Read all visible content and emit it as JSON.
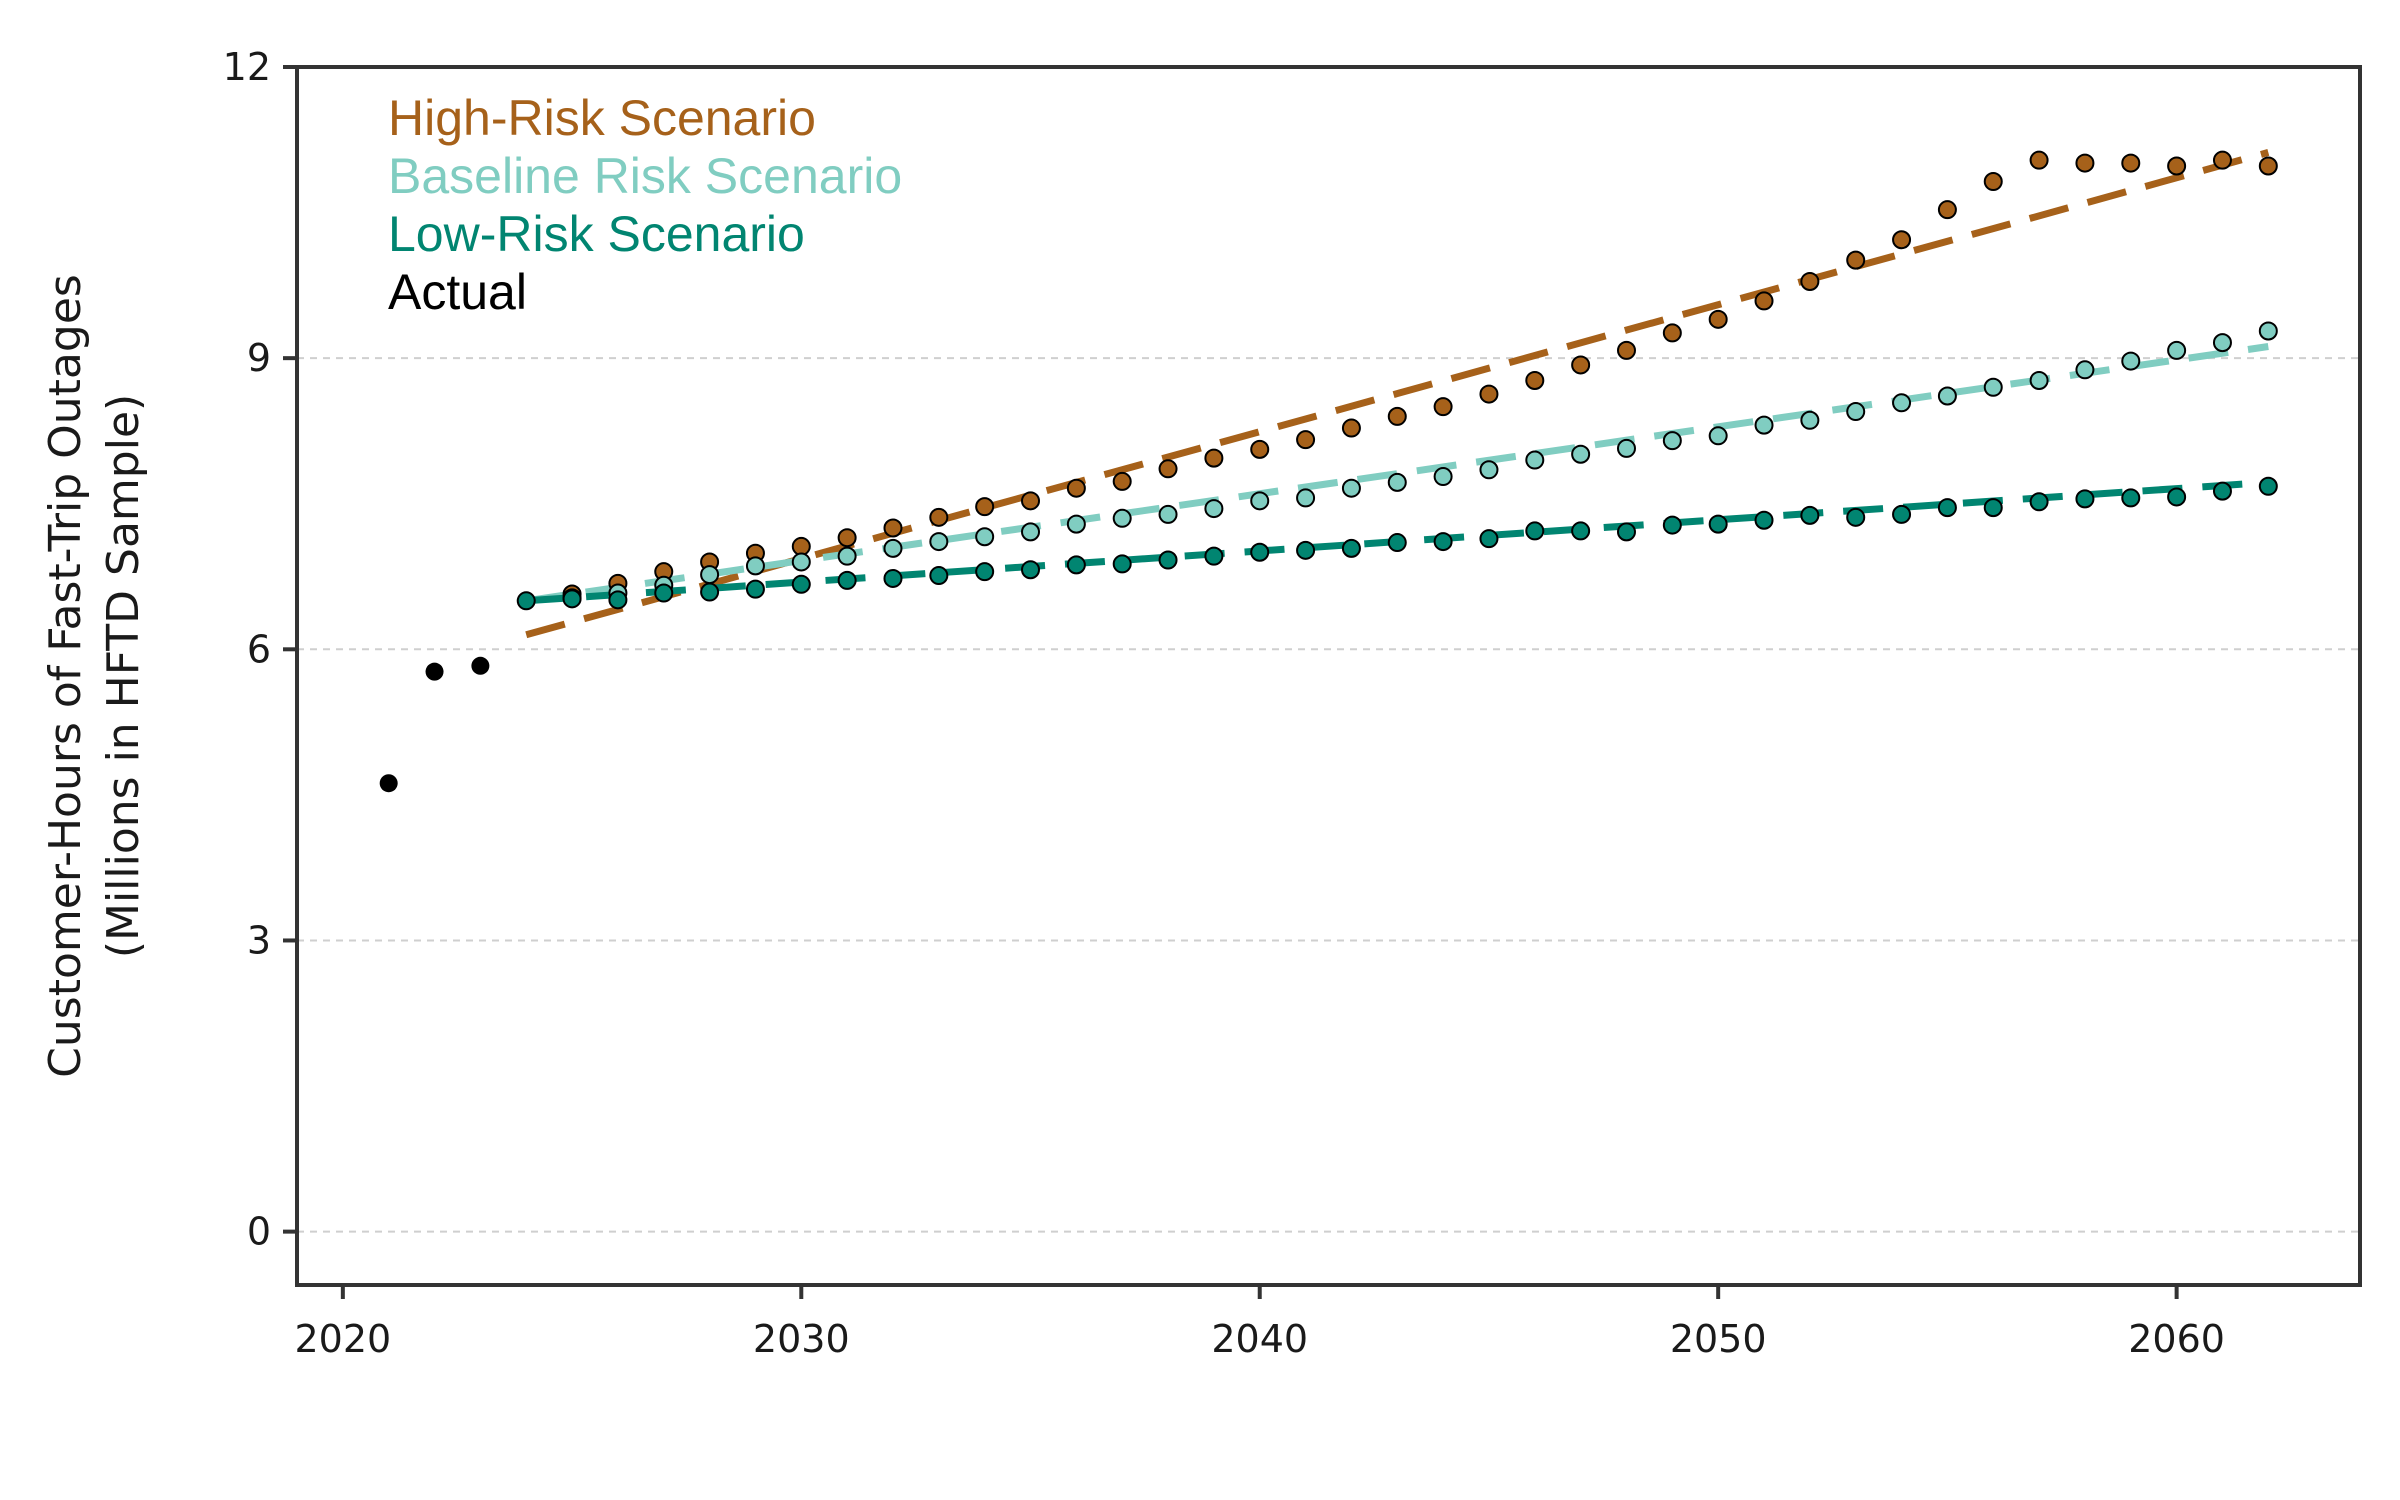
{
  "chart_data": {
    "type": "scatter",
    "ylabel": [
      "Customer-Hours of Fast-Trip Outages",
      "(Millions in HFTD Sample)"
    ],
    "xlabel": "",
    "xlim": [
      2019,
      2064
    ],
    "ylim": [
      -0.55,
      12
    ],
    "xticks": [
      2020,
      2030,
      2040,
      2050,
      2060
    ],
    "yticks": [
      0,
      3,
      6,
      9,
      12
    ],
    "grid": "horizontal dashed",
    "legend": "top-left",
    "series": [
      {
        "name": "High-Risk Scenario",
        "color": "#a6611a",
        "x": [
          2025,
          2026,
          2027,
          2028,
          2029,
          2030,
          2031,
          2032,
          2033,
          2034,
          2035,
          2036,
          2037,
          2038,
          2039,
          2040,
          2041,
          2042,
          2043,
          2044,
          2045,
          2046,
          2047,
          2048,
          2049,
          2050,
          2051,
          2052,
          2053,
          2054,
          2055,
          2056,
          2057,
          2058,
          2059,
          2060,
          2061,
          2062
        ],
        "y": [
          6.57,
          6.68,
          6.8,
          6.9,
          6.99,
          7.06,
          7.15,
          7.25,
          7.36,
          7.47,
          7.53,
          7.66,
          7.73,
          7.86,
          7.97,
          8.06,
          8.16,
          8.28,
          8.4,
          8.5,
          8.63,
          8.77,
          8.93,
          9.08,
          9.26,
          9.4,
          9.59,
          9.79,
          10.01,
          10.22,
          10.53,
          10.82,
          11.04,
          11.01,
          11.01,
          10.98,
          11.04,
          10.98
        ],
        "trend": {
          "x": [
            2024,
            2062
          ],
          "y": [
            6.15,
            11.12
          ]
        }
      },
      {
        "name": "Baseline Risk Scenario",
        "color": "#80cdc1",
        "x": [
          2025,
          2026,
          2027,
          2028,
          2029,
          2030,
          2031,
          2032,
          2033,
          2034,
          2035,
          2036,
          2037,
          2038,
          2039,
          2040,
          2041,
          2042,
          2043,
          2044,
          2045,
          2046,
          2047,
          2048,
          2049,
          2050,
          2051,
          2052,
          2053,
          2054,
          2055,
          2056,
          2057,
          2058,
          2059,
          2060,
          2061,
          2062
        ],
        "y": [
          6.53,
          6.58,
          6.66,
          6.77,
          6.86,
          6.9,
          6.96,
          7.04,
          7.11,
          7.16,
          7.21,
          7.29,
          7.35,
          7.39,
          7.45,
          7.53,
          7.56,
          7.66,
          7.72,
          7.78,
          7.85,
          7.95,
          8.01,
          8.07,
          8.15,
          8.2,
          8.31,
          8.36,
          8.45,
          8.54,
          8.61,
          8.7,
          8.77,
          8.88,
          8.97,
          9.08,
          9.16,
          9.28
        ],
        "trend": {
          "x": [
            2024,
            2062
          ],
          "y": [
            6.5,
            9.12
          ]
        }
      },
      {
        "name": "Low-Risk Scenario",
        "color": "#018571",
        "x": [
          2024,
          2025,
          2026,
          2027,
          2028,
          2029,
          2030,
          2031,
          2032,
          2033,
          2034,
          2035,
          2036,
          2037,
          2038,
          2039,
          2040,
          2041,
          2042,
          2043,
          2044,
          2045,
          2046,
          2047,
          2048,
          2049,
          2050,
          2051,
          2052,
          2053,
          2054,
          2055,
          2056,
          2057,
          2058,
          2059,
          2060,
          2061,
          2062
        ],
        "y": [
          6.5,
          6.52,
          6.51,
          6.58,
          6.59,
          6.62,
          6.67,
          6.71,
          6.73,
          6.76,
          6.8,
          6.82,
          6.87,
          6.88,
          6.92,
          6.96,
          7.0,
          7.02,
          7.04,
          7.1,
          7.11,
          7.14,
          7.22,
          7.22,
          7.21,
          7.28,
          7.29,
          7.33,
          7.38,
          7.36,
          7.39,
          7.46,
          7.46,
          7.52,
          7.55,
          7.56,
          7.57,
          7.63,
          7.68
        ],
        "trend": {
          "x": [
            2024,
            2062
          ],
          "y": [
            6.5,
            7.72
          ]
        }
      },
      {
        "name": "Actual",
        "color": "#000000",
        "x": [
          2021,
          2022,
          2023
        ],
        "y": [
          4.62,
          5.77,
          5.83
        ]
      }
    ]
  }
}
